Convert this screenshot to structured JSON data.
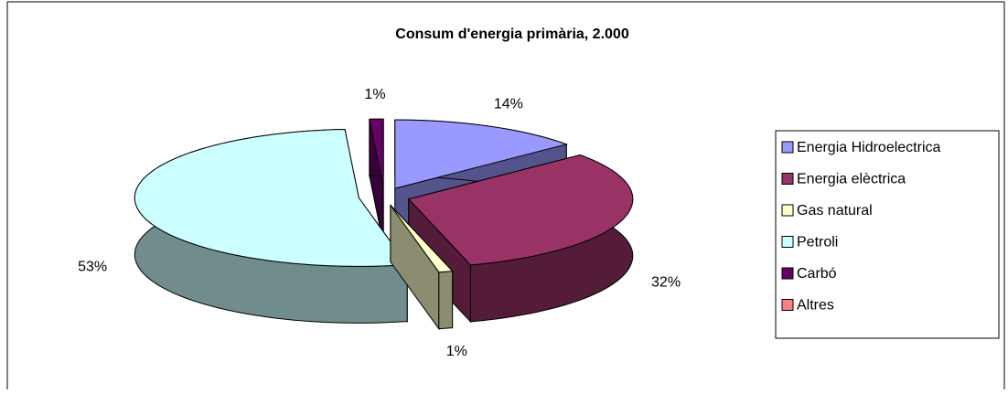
{
  "chart_data": {
    "type": "pie",
    "title": "Consum d'energia primària, 2.000",
    "categories": [
      "Energia Hidroelectrica",
      "Energia elèctrica",
      "Gas natural",
      "Petroli",
      "Carbó",
      "Altres"
    ],
    "values": [
      14,
      32,
      1,
      53,
      1,
      0
    ],
    "value_labels": [
      "14%",
      "32%",
      "1%",
      "53%",
      "1%",
      null
    ],
    "colors": [
      "#9999ff",
      "#993366",
      "#ffffcc",
      "#ccffff",
      "#660066",
      "#ff8080"
    ],
    "legend": "right"
  }
}
